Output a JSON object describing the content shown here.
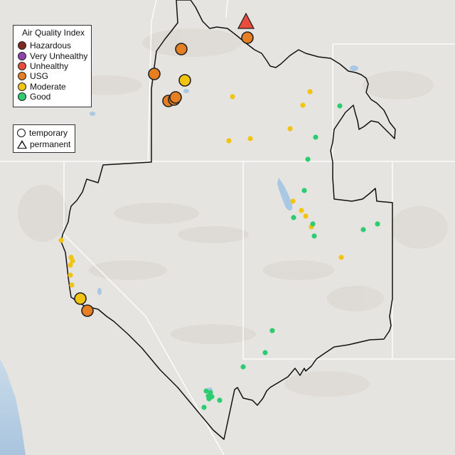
{
  "legend": {
    "title": "Air Quality Index",
    "categories": [
      {
        "label": "Hazardous",
        "color": "#7e2a22"
      },
      {
        "label": "Very Unhealthy",
        "color": "#8e44ad"
      },
      {
        "label": "Unhealthy",
        "color": "#e74c3c"
      },
      {
        "label": "USG",
        "color": "#e67e22"
      },
      {
        "label": "Moderate",
        "color": "#f1c40f"
      },
      {
        "label": "Good",
        "color": "#2ecc71"
      }
    ]
  },
  "monitor_types": {
    "temporary_label": "temporary",
    "permanent_label": "permanent"
  },
  "colors": {
    "land": "#e6e4e0",
    "water": "#a8c8e4",
    "state_lines": "#ffffff",
    "region_outline": "#111111"
  },
  "monitors": [
    {
      "cat": "Unhealthy",
      "type": "permanent",
      "size": "large"
    },
    {
      "cat": "USG",
      "type": "temporary",
      "size": "large"
    },
    {
      "cat": "USG",
      "type": "temporary",
      "size": "large"
    },
    {
      "cat": "USG",
      "type": "temporary",
      "size": "large"
    },
    {
      "cat": "Moderate",
      "type": "temporary",
      "size": "large"
    },
    {
      "cat": "USG",
      "type": "temporary",
      "size": "large"
    },
    {
      "cat": "USG",
      "type": "temporary",
      "size": "large"
    },
    {
      "cat": "USG",
      "type": "temporary",
      "size": "large"
    },
    {
      "cat": "Moderate",
      "type": "temporary",
      "size": "large"
    },
    {
      "cat": "USG",
      "type": "temporary",
      "size": "large"
    },
    {
      "cat": "Moderate",
      "type": "permanent",
      "size": "small"
    },
    {
      "cat": "Moderate",
      "type": "permanent",
      "size": "small"
    },
    {
      "cat": "Moderate",
      "type": "permanent",
      "size": "small"
    },
    {
      "cat": "Moderate",
      "type": "permanent",
      "size": "small"
    },
    {
      "cat": "Moderate",
      "type": "permanent",
      "size": "small"
    },
    {
      "cat": "Moderate",
      "type": "permanent",
      "size": "small"
    },
    {
      "cat": "Good",
      "type": "permanent",
      "size": "small"
    },
    {
      "cat": "Good",
      "type": "permanent",
      "size": "small"
    },
    {
      "cat": "Good",
      "type": "permanent",
      "size": "small"
    },
    {
      "cat": "Good",
      "type": "permanent",
      "size": "small"
    },
    {
      "cat": "Moderate",
      "type": "permanent",
      "size": "small"
    },
    {
      "cat": "Moderate",
      "type": "permanent",
      "size": "small"
    },
    {
      "cat": "Moderate",
      "type": "permanent",
      "size": "small"
    },
    {
      "cat": "Good",
      "type": "permanent",
      "size": "small"
    },
    {
      "cat": "Moderate",
      "type": "permanent",
      "size": "small"
    },
    {
      "cat": "Good",
      "type": "permanent",
      "size": "small"
    },
    {
      "cat": "Good",
      "type": "permanent",
      "size": "small"
    },
    {
      "cat": "Good",
      "type": "permanent",
      "size": "small"
    },
    {
      "cat": "Good",
      "type": "permanent",
      "size": "small"
    },
    {
      "cat": "Moderate",
      "type": "permanent",
      "size": "small"
    },
    {
      "cat": "Moderate",
      "type": "permanent",
      "size": "small"
    },
    {
      "cat": "Moderate",
      "type": "permanent",
      "size": "small"
    },
    {
      "cat": "Moderate",
      "type": "permanent",
      "size": "small"
    },
    {
      "cat": "Moderate",
      "type": "permanent",
      "size": "small"
    },
    {
      "cat": "Moderate",
      "type": "permanent",
      "size": "small"
    },
    {
      "cat": "Moderate",
      "type": "permanent",
      "size": "small"
    },
    {
      "cat": "Good",
      "type": "permanent",
      "size": "small"
    },
    {
      "cat": "Good",
      "type": "permanent",
      "size": "small"
    },
    {
      "cat": "Good",
      "type": "permanent",
      "size": "small"
    },
    {
      "cat": "Good",
      "type": "permanent",
      "size": "small"
    },
    {
      "cat": "Good",
      "type": "permanent",
      "size": "small"
    },
    {
      "cat": "Good",
      "type": "permanent",
      "size": "small"
    },
    {
      "cat": "Good",
      "type": "permanent",
      "size": "small"
    },
    {
      "cat": "Good",
      "type": "permanent",
      "size": "small"
    },
    {
      "cat": "Good",
      "type": "permanent",
      "size": "small"
    },
    {
      "cat": "Good",
      "type": "permanent",
      "size": "small"
    }
  ]
}
